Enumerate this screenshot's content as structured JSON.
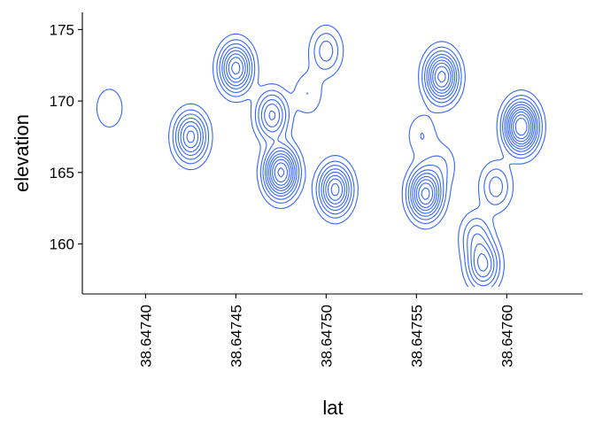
{
  "chart_data": {
    "type": "contour",
    "title": "",
    "xlabel": "lat",
    "ylabel": "elevation",
    "xlim": [
      38.647365,
      38.647642
    ],
    "ylim": [
      156.5,
      176.2
    ],
    "x_ticks": [
      38.6474,
      38.64745,
      38.6475,
      38.64755,
      38.6476
    ],
    "x_tick_labels": [
      "38.64740",
      "38.64745",
      "38.64750",
      "38.64755",
      "38.64760"
    ],
    "y_ticks": [
      160,
      165,
      170,
      175
    ],
    "y_tick_labels": [
      "160",
      "165",
      "170",
      "175"
    ],
    "grid": false,
    "line_color": "#3366FF",
    "density_peaks": [
      {
        "lat": 38.64738,
        "elevation": 169.5,
        "level": 1
      },
      {
        "lat": 38.64745,
        "elevation": 172.3,
        "level": 6
      },
      {
        "lat": 38.647425,
        "elevation": 167.5,
        "level": 5
      },
      {
        "lat": 38.64747,
        "elevation": 169.0,
        "level": 4
      },
      {
        "lat": 38.647475,
        "elevation": 165.0,
        "level": 8
      },
      {
        "lat": 38.647505,
        "elevation": 163.8,
        "level": 6
      },
      {
        "lat": 38.6475,
        "elevation": 173.5,
        "level": 2
      },
      {
        "lat": 38.64749,
        "elevation": 170.5,
        "level": 1
      },
      {
        "lat": 38.647555,
        "elevation": 163.5,
        "level": 7
      },
      {
        "lat": 38.647564,
        "elevation": 171.7,
        "level": 7
      },
      {
        "lat": 38.647608,
        "elevation": 168.2,
        "level": 9
      },
      {
        "lat": 38.647587,
        "elevation": 158.5,
        "level": 4
      },
      {
        "lat": 38.647583,
        "elevation": 160.5,
        "level": 2
      },
      {
        "lat": 38.647594,
        "elevation": 164.0,
        "level": 2
      },
      {
        "lat": 38.647564,
        "elevation": 165.5,
        "level": 1
      },
      {
        "lat": 38.647553,
        "elevation": 167.6,
        "level": 1
      }
    ]
  }
}
